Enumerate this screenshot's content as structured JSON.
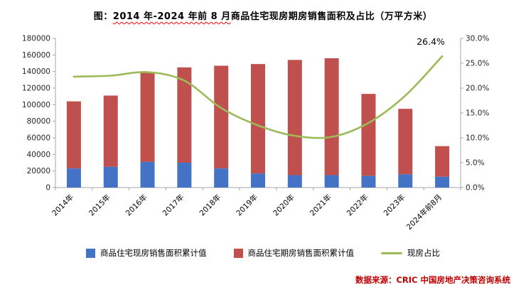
{
  "title": {
    "prefix": "图：",
    "underlined": "2014 年-2024 年前 8 月",
    "rest": "商品住宅现房期房销售面积及占比（万平方米）"
  },
  "footer": "数据来源：CRIC 中国房地产决策咨询系统",
  "colors": {
    "bar_blue": "#4472C4",
    "bar_red": "#C0504D",
    "line_green": "#9BBB59",
    "axis_gray": "#A6A6A6",
    "label_color": "#262626",
    "footer_red": "#C00000"
  },
  "chart_data": {
    "type": "bar",
    "subtype": "stacked-bars-with-line",
    "categories": [
      "2014年",
      "2015年",
      "2016年",
      "2017年",
      "2018年",
      "2019年",
      "2020年",
      "2021年",
      "2022年",
      "2023年",
      "2024年前8月"
    ],
    "series": [
      {
        "name": "商品住宅现房销售面积累计值",
        "type": "bar",
        "color": "#4472C4",
        "axis": "left",
        "values": [
          23000,
          25000,
          31000,
          30000,
          23000,
          17000,
          15000,
          15000,
          14000,
          16000,
          13000
        ]
      },
      {
        "name": "商品住宅期房销售面积累计值",
        "type": "bar",
        "color": "#C0504D",
        "axis": "left",
        "values": [
          81000,
          86000,
          108000,
          115000,
          124000,
          132000,
          139000,
          141000,
          99000,
          79000,
          37000
        ]
      },
      {
        "name": "现房占比",
        "type": "line",
        "color": "#9BBB59",
        "axis": "right",
        "values": [
          22.3,
          22.5,
          23.2,
          21.5,
          16.0,
          12.5,
          10.4,
          10.2,
          13.0,
          18.5,
          26.4
        ]
      }
    ],
    "left_axis": {
      "min": 0,
      "max": 180000,
      "step": 20000
    },
    "right_axis": {
      "min": 0,
      "max": 30,
      "step": 5,
      "format": "percent-one-decimal"
    },
    "grid": false,
    "legend_position": "bottom",
    "annotation": {
      "text": "26.4%",
      "category_index": 10
    }
  }
}
